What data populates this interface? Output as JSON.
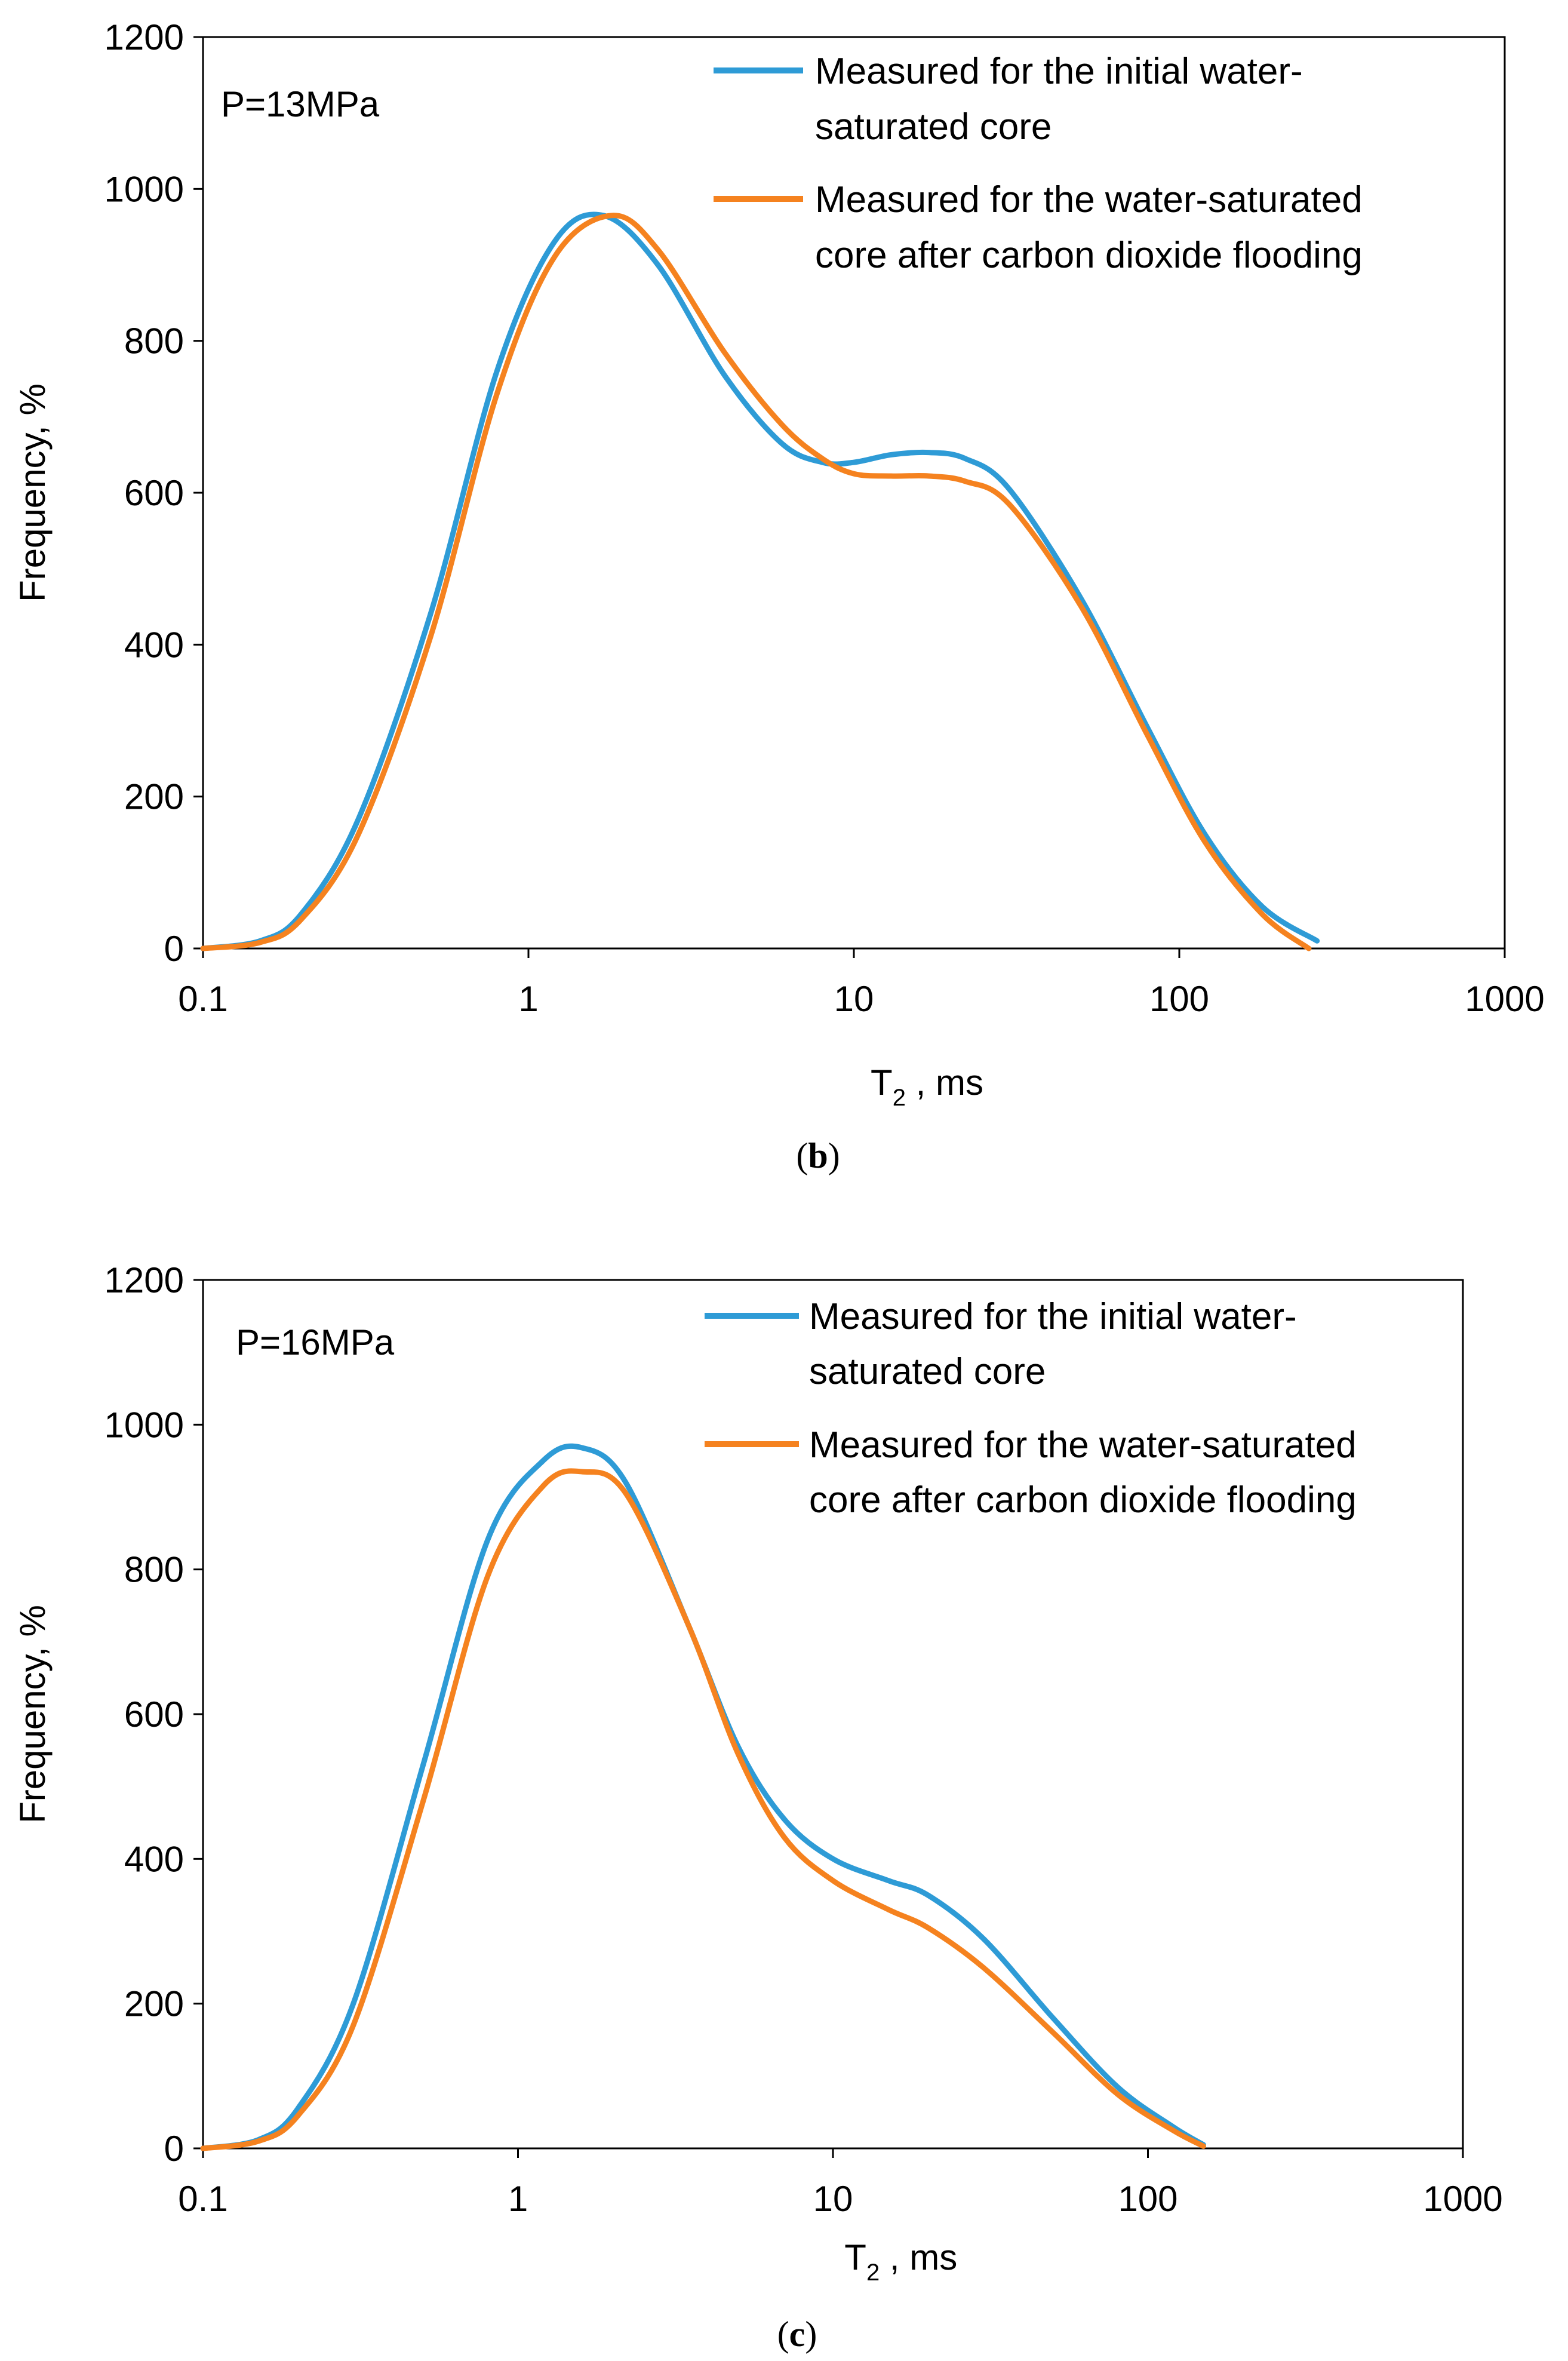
{
  "chart_data": [
    {
      "panel": "b",
      "panel_label_open": "(",
      "panel_label_letter": "b",
      "panel_label_close": ")",
      "type": "line",
      "annotation": "P=13MPa",
      "xlabel_main": "T",
      "xlabel_sub": "2",
      "xlabel_rest": " , ms",
      "ylabel": "Frequency, %",
      "xscale": "log",
      "xlim": [
        0.1,
        1000
      ],
      "ylim": [
        0,
        1200
      ],
      "xticks": [
        0.1,
        1,
        10,
        100,
        1000
      ],
      "xtick_labels": [
        "0.1",
        "1",
        "10",
        "100",
        "1000"
      ],
      "yticks": [
        0,
        200,
        400,
        600,
        800,
        1000,
        1200
      ],
      "ytick_labels": [
        "0",
        "200",
        "400",
        "600",
        "800",
        "1000",
        "1200"
      ],
      "legend_position": "top-right",
      "series": [
        {
          "name": "Measured for the initial water-saturated core",
          "legend_lines": [
            "Measured for the initial water-",
            "saturated core"
          ],
          "color": "#2E9BD6",
          "x": [
            0.1,
            0.15,
            0.2,
            0.3,
            0.5,
            0.8,
            1.2,
            1.7,
            2.5,
            4,
            6,
            8,
            10,
            13,
            17,
            22,
            30,
            50,
            80,
            120,
            180,
            265
          ],
          "y": [
            0,
            10,
            45,
            170,
            440,
            760,
            930,
            965,
            900,
            755,
            665,
            640,
            640,
            650,
            653,
            645,
            605,
            460,
            290,
            150,
            55,
            10
          ]
        },
        {
          "name": "Measured for the water-saturated core after carbon dioxide flooding",
          "legend_lines": [
            "Measured for the water-saturated",
            "core after carbon dioxide flooding"
          ],
          "color": "#F5821F",
          "x": [
            0.1,
            0.15,
            0.2,
            0.3,
            0.5,
            0.8,
            1.2,
            1.8,
            2.5,
            4,
            6,
            8,
            10,
            13,
            17,
            22,
            30,
            50,
            80,
            120,
            180,
            250
          ],
          "y": [
            0,
            8,
            38,
            150,
            410,
            730,
            910,
            965,
            920,
            785,
            690,
            645,
            625,
            622,
            622,
            615,
            585,
            450,
            280,
            140,
            45,
            0
          ]
        }
      ]
    },
    {
      "panel": "c",
      "panel_label_open": "(",
      "panel_label_letter": "c",
      "panel_label_close": ")",
      "type": "line",
      "annotation": "P=16MPa",
      "xlabel_main": "T",
      "xlabel_sub": "2",
      "xlabel_rest": " , ms",
      "ylabel": "Frequency, %",
      "xscale": "log",
      "xlim": [
        0.1,
        1000
      ],
      "ylim": [
        0,
        1200
      ],
      "xticks": [
        0.1,
        1,
        10,
        100,
        1000
      ],
      "xtick_labels": [
        "0.1",
        "1",
        "10",
        "100",
        "1000"
      ],
      "yticks": [
        0,
        200,
        400,
        600,
        800,
        1000,
        1200
      ],
      "ytick_labels": [
        "0",
        "200",
        "400",
        "600",
        "800",
        "1000",
        "1200"
      ],
      "legend_position": "top-right",
      "series": [
        {
          "name": "Measured for the initial water-saturated core",
          "legend_lines": [
            "Measured for the initial water-",
            "saturated core"
          ],
          "color": "#2E9BD6",
          "x": [
            0.1,
            0.15,
            0.2,
            0.3,
            0.5,
            0.8,
            1.2,
            1.6,
            2.2,
            3.5,
            5,
            7,
            10,
            15,
            20,
            30,
            50,
            80,
            120,
            150
          ],
          "y": [
            0,
            12,
            55,
            200,
            530,
            840,
            950,
            968,
            920,
            720,
            555,
            455,
            400,
            370,
            350,
            290,
            180,
            85,
            30,
            5
          ]
        },
        {
          "name": "Measured for the water-saturated core after carbon dioxide flooding",
          "legend_lines": [
            "Measured for the water-saturated",
            "core after carbon dioxide flooding"
          ],
          "color": "#F5821F",
          "x": [
            0.1,
            0.15,
            0.2,
            0.3,
            0.5,
            0.8,
            1.2,
            1.6,
            2.2,
            3.5,
            5,
            7,
            10,
            15,
            20,
            30,
            50,
            80,
            120,
            150
          ],
          "y": [
            0,
            10,
            45,
            170,
            480,
            790,
            915,
            935,
            905,
            720,
            545,
            430,
            370,
            330,
            305,
            250,
            160,
            75,
            25,
            3
          ]
        }
      ]
    }
  ]
}
